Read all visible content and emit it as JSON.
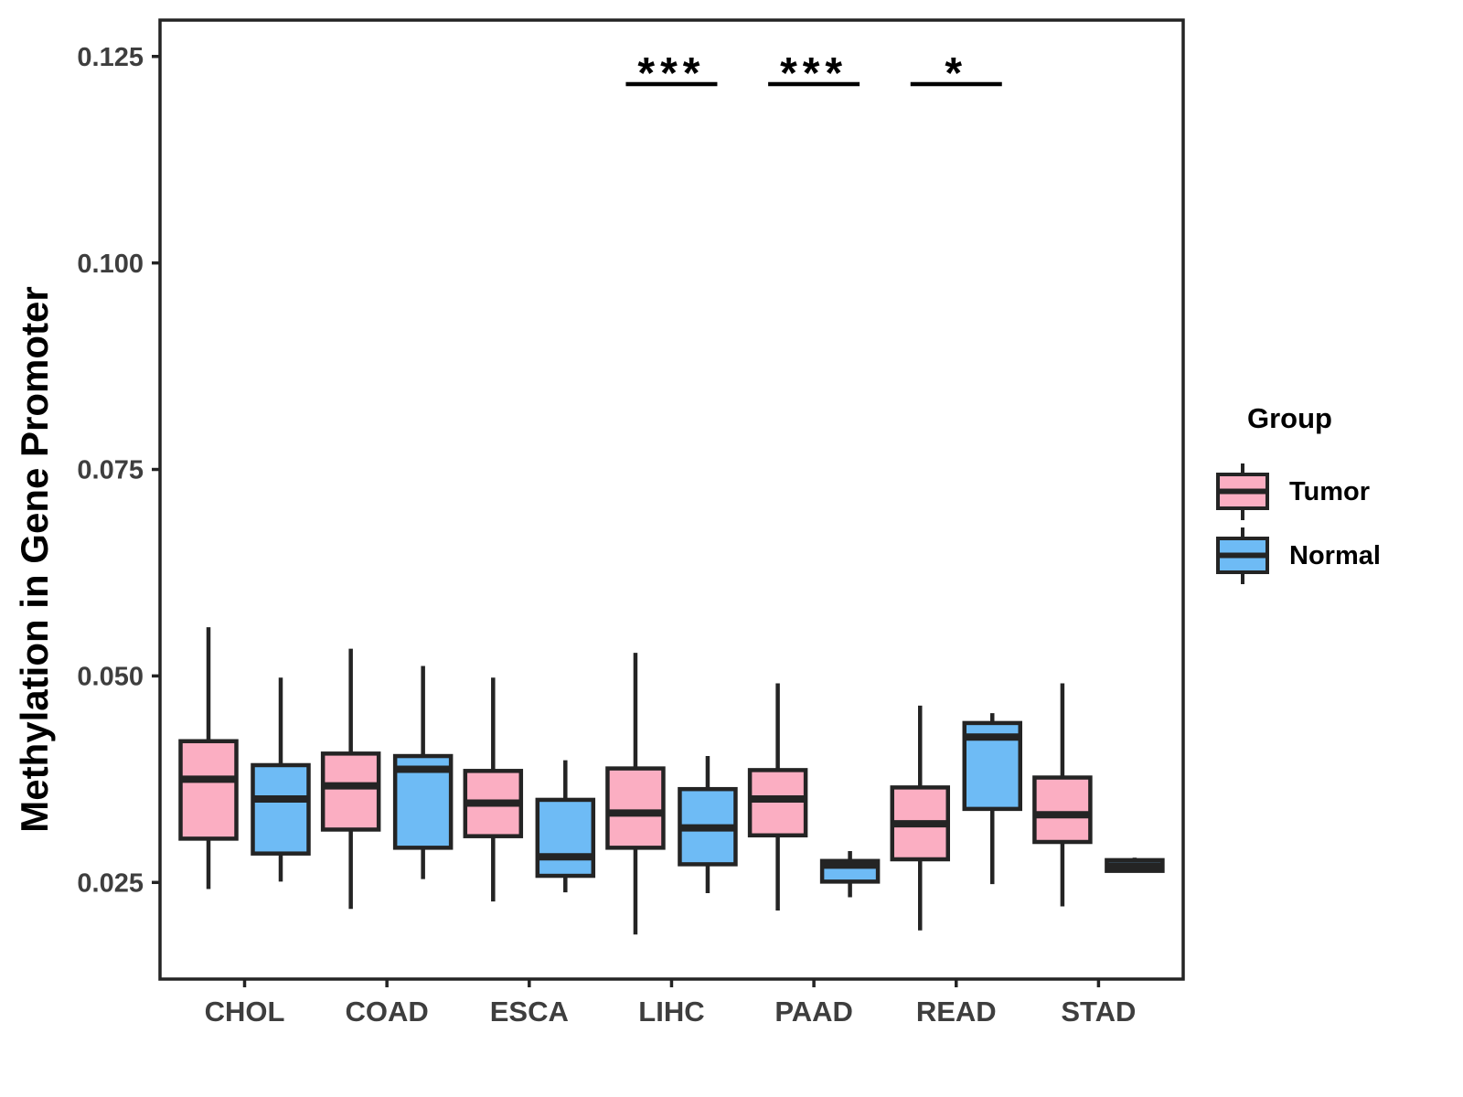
{
  "chart_data": {
    "type": "boxplot",
    "title": "",
    "xlabel": "",
    "ylabel": "Methylation in Gene Promoter",
    "categories": [
      "CHOL",
      "COAD",
      "ESCA",
      "LIHC",
      "PAAD",
      "READ",
      "STAD"
    ],
    "ylim": [
      0.0133,
      0.1294
    ],
    "y_ticks": [
      {
        "value": 0.025,
        "label": "0.025"
      },
      {
        "value": 0.05,
        "label": "0.050"
      },
      {
        "value": 0.075,
        "label": "0.075"
      },
      {
        "value": 0.1,
        "label": "0.100"
      },
      {
        "value": 0.125,
        "label": "0.125"
      }
    ],
    "grid": "off",
    "legend": {
      "title": "Group",
      "position": "right"
    },
    "groups": [
      {
        "name": "Tumor",
        "color": "#FBAEC2"
      },
      {
        "name": "Normal",
        "color": "#6EBBF5"
      }
    ],
    "series": [
      {
        "name": "Tumor",
        "boxes": [
          {
            "category": "CHOL",
            "whisker_low": 0.0242,
            "q1": 0.0303,
            "median": 0.0375,
            "q3": 0.0421,
            "whisker_high": 0.0559
          },
          {
            "category": "COAD",
            "whisker_low": 0.0218,
            "q1": 0.0314,
            "median": 0.0367,
            "q3": 0.0406,
            "whisker_high": 0.0533
          },
          {
            "category": "ESCA",
            "whisker_low": 0.0227,
            "q1": 0.0306,
            "median": 0.0346,
            "q3": 0.0385,
            "whisker_high": 0.0498
          },
          {
            "category": "LIHC",
            "whisker_low": 0.0187,
            "q1": 0.0292,
            "median": 0.0334,
            "q3": 0.0388,
            "whisker_high": 0.0528
          },
          {
            "category": "PAAD",
            "whisker_low": 0.0216,
            "q1": 0.0307,
            "median": 0.0351,
            "q3": 0.0386,
            "whisker_high": 0.0491
          },
          {
            "category": "READ",
            "whisker_low": 0.0192,
            "q1": 0.0278,
            "median": 0.0321,
            "q3": 0.0365,
            "whisker_high": 0.0464
          },
          {
            "category": "STAD",
            "whisker_low": 0.0221,
            "q1": 0.0299,
            "median": 0.0332,
            "q3": 0.0377,
            "whisker_high": 0.0491
          }
        ]
      },
      {
        "name": "Normal",
        "boxes": [
          {
            "category": "CHOL",
            "whisker_low": 0.0251,
            "q1": 0.0285,
            "median": 0.0351,
            "q3": 0.0392,
            "whisker_high": 0.0498
          },
          {
            "category": "COAD",
            "whisker_low": 0.0254,
            "q1": 0.0292,
            "median": 0.0387,
            "q3": 0.0403,
            "whisker_high": 0.0512
          },
          {
            "category": "ESCA",
            "whisker_low": 0.0238,
            "q1": 0.0258,
            "median": 0.0281,
            "q3": 0.035,
            "whisker_high": 0.0398
          },
          {
            "category": "LIHC",
            "whisker_low": 0.0237,
            "q1": 0.0272,
            "median": 0.0316,
            "q3": 0.0363,
            "whisker_high": 0.0403
          },
          {
            "category": "PAAD",
            "whisker_low": 0.0232,
            "q1": 0.0251,
            "median": 0.0271,
            "q3": 0.0276,
            "whisker_high": 0.0288
          },
          {
            "category": "READ",
            "whisker_low": 0.0248,
            "q1": 0.0339,
            "median": 0.0426,
            "q3": 0.0443,
            "whisker_high": 0.0455
          },
          {
            "category": "STAD",
            "whisker_low": 0.0262,
            "q1": 0.0264,
            "median": 0.027,
            "q3": 0.0277,
            "whisker_high": 0.028
          }
        ]
      }
    ],
    "significance": [
      {
        "category": "LIHC",
        "label": "***"
      },
      {
        "category": "PAAD",
        "label": "***"
      },
      {
        "category": "READ",
        "label": "*"
      }
    ],
    "colors": {
      "box_outline": "#242424",
      "panel_border": "#242424",
      "tick_text": "#3E3E3E",
      "annotation": "#000000"
    }
  }
}
